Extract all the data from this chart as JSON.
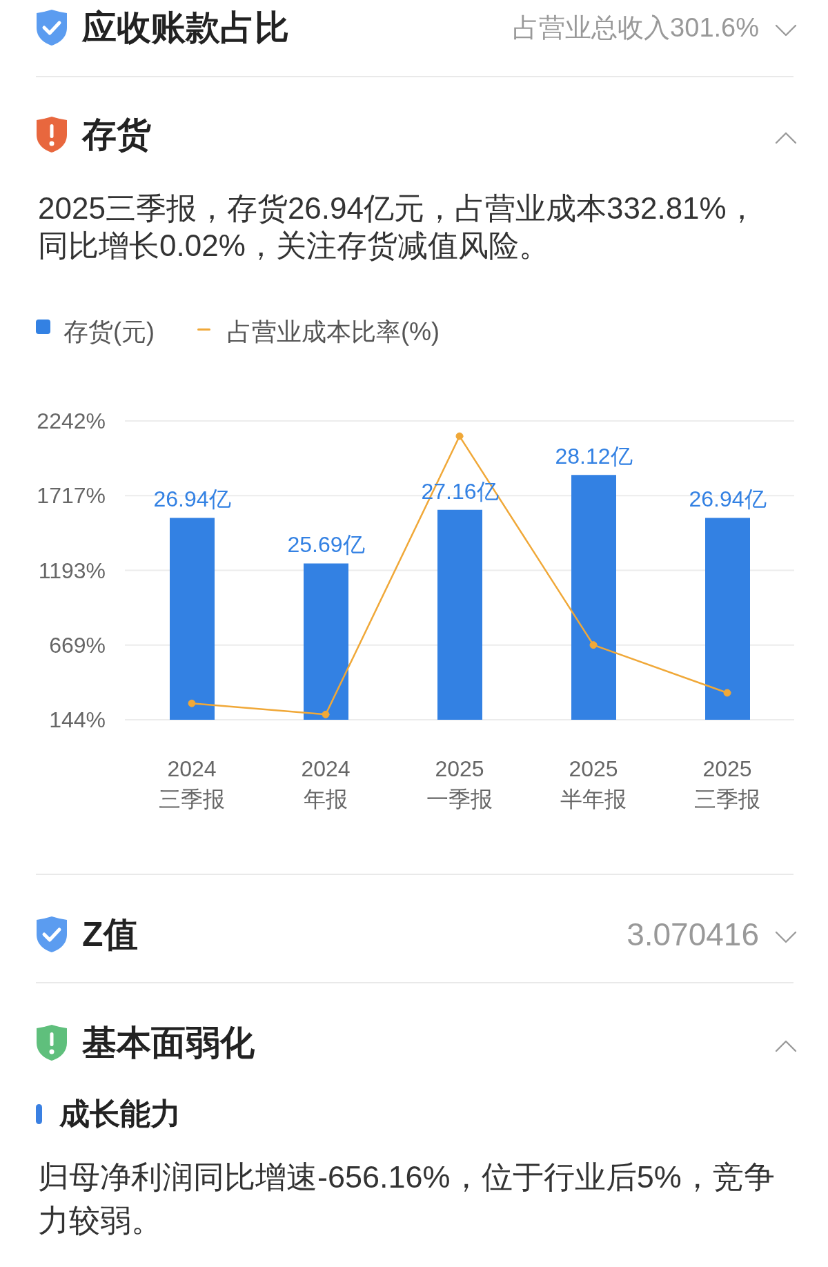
{
  "chart_data": [
    {
      "type": "other",
      "title": "应收账款占比",
      "annotations": [
        "占营业总收入301.6%"
      ]
    },
    {
      "type": "bar",
      "title": "存货",
      "subtitle": "2025三季报，存货26.94亿元，占营业成本332.81%，同比增长0.02%，关注存货减值风险。",
      "categories": [
        "2024\n三季报",
        "2024\n年报",
        "2025\n一季报",
        "2025\n半年报",
        "2025\n三季报"
      ],
      "series": [
        {
          "name": "存货(元)",
          "type": "bar",
          "axis": "y2",
          "color": "#3381e3",
          "values": [
            26.94,
            25.69,
            27.16,
            28.12,
            26.94
          ],
          "value_labels": [
            "26.94亿",
            "25.69亿",
            "27.16亿",
            "28.12亿",
            "26.94亿"
          ]
        },
        {
          "name": "占营业成本比率(%)",
          "type": "line",
          "color": "#f0a838",
          "values": [
            259,
            181,
            2135,
            669,
            333
          ]
        }
      ],
      "ylim": [
        144,
        2242
      ],
      "yticks": [
        {
          "value": 144,
          "label": "144%"
        },
        {
          "value": 668.5,
          "label": "669%"
        },
        {
          "value": 1193,
          "label": "1193%"
        },
        {
          "value": 1717.5,
          "label": "1717%"
        },
        {
          "value": 2242,
          "label": "2242%"
        }
      ],
      "y2lim": [
        21.4,
        29.6
      ],
      "grid": "y",
      "legend": "top left",
      "marker": "circle"
    },
    {
      "type": "other",
      "title": "Z值",
      "annotations": [
        "3.070416"
      ]
    },
    {
      "type": "other",
      "title": "基本面弱化",
      "subtitle": "成长能力",
      "annotations": [
        "归母净利润同比增速-656.16%，位于行业后5%，竞争力较弱。"
      ]
    }
  ]
}
